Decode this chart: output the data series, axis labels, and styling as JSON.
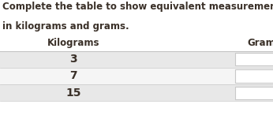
{
  "title_line1": "Complete the table to show equivalent measurements",
  "title_line2": "in kilograms and grams.",
  "col1_header": "Kilograms",
  "col2_header": "Gram",
  "rows": [
    3,
    7,
    15
  ],
  "bg_color": "#ffffff",
  "row_odd_color": "#e8e8e8",
  "row_even_color": "#f5f5f5",
  "header_text_color": "#3a3028",
  "row_text_color": "#3a3028",
  "title_text_color": "#3a3028",
  "input_box_color": "#ffffff",
  "input_box_border": "#c8c8c8",
  "title_fontsize": 8.5,
  "header_fontsize": 8.5,
  "row_fontsize": 10.0
}
